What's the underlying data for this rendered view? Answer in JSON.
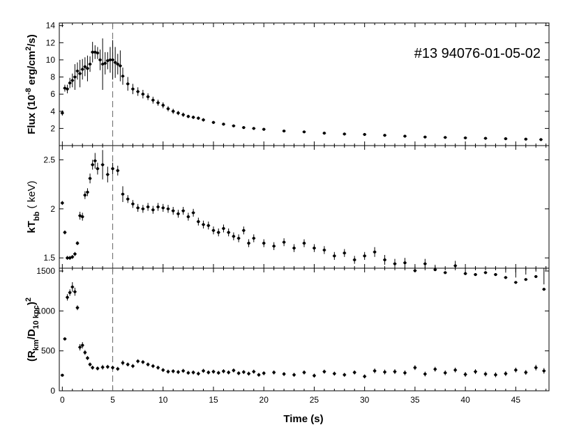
{
  "chart_data": {
    "type": "scatter",
    "title": "",
    "annotation": "#13 94076-01-05-02",
    "xlabel": "Time (s)",
    "xlim": [
      -0.3,
      48.3
    ],
    "xticks": [
      0,
      5,
      10,
      15,
      20,
      25,
      30,
      35,
      40,
      45
    ],
    "xtick_labels": [
      "0",
      "5",
      "10",
      "15",
      "20",
      "25",
      "30",
      "35",
      "40",
      "45"
    ],
    "vline_x": 5,
    "marker_color": "#000000",
    "panels": [
      {
        "name": "flux",
        "ylabel_parts": [
          "Flux (10",
          "-8",
          " erg/cm",
          "2",
          "/s)"
        ],
        "ylim": [
          0,
          14.3
        ],
        "yticks": [
          2,
          4,
          6,
          8,
          10,
          12,
          14
        ],
        "ytick_labels": [
          "2",
          "4",
          "6",
          "8",
          "10",
          "12",
          "14"
        ],
        "x": [
          0.0,
          0.25,
          0.5,
          0.75,
          1.0,
          1.25,
          1.5,
          1.75,
          2.0,
          2.25,
          2.5,
          2.75,
          3.0,
          3.25,
          3.5,
          3.75,
          4.0,
          4.25,
          4.5,
          4.75,
          5.0,
          5.25,
          5.5,
          5.75,
          6.0,
          6.5,
          7.0,
          7.5,
          8.0,
          8.5,
          9.0,
          9.5,
          10.0,
          10.5,
          11.0,
          11.5,
          12.0,
          12.5,
          13.0,
          13.5,
          14.0,
          15.0,
          16.0,
          17.0,
          18.0,
          19.0,
          20.0,
          22.0,
          24.0,
          26.0,
          28.0,
          30.0,
          32.0,
          34.0,
          36.0,
          38.0,
          40.0,
          42.0,
          44.0,
          46.0,
          47.5
        ],
        "y": [
          3.8,
          6.7,
          6.6,
          7.3,
          7.6,
          8.0,
          8.7,
          8.4,
          8.9,
          9.2,
          9.0,
          9.5,
          10.9,
          10.9,
          10.8,
          10.0,
          9.5,
          9.6,
          9.9,
          10.0,
          10.0,
          9.7,
          9.5,
          9.3,
          8.1,
          7.2,
          6.6,
          6.3,
          6.0,
          5.7,
          5.3,
          5.0,
          4.7,
          4.3,
          4.0,
          3.8,
          3.6,
          3.4,
          3.3,
          3.2,
          3.0,
          2.7,
          2.5,
          2.3,
          2.1,
          2.0,
          1.9,
          1.7,
          1.6,
          1.45,
          1.35,
          1.3,
          1.2,
          1.1,
          1.0,
          0.95,
          0.9,
          0.85,
          0.8,
          0.75,
          0.7
        ],
        "yerr": [
          0.3,
          0.4,
          0.5,
          0.6,
          0.8,
          1.5,
          1.0,
          1.6,
          1.2,
          1.1,
          1.5,
          0.9,
          1.2,
          0.8,
          0.7,
          1.2,
          3.0,
          1.3,
          1.0,
          1.5,
          2.3,
          1.8,
          1.2,
          1.8,
          1.0,
          0.8,
          0.6,
          0.5,
          0.5,
          0.4,
          0.4,
          0.35,
          0.35,
          0.3,
          0.3,
          0.25,
          0.25,
          0.2,
          0.2,
          0.2,
          0.2,
          0.15,
          0.15,
          0.15,
          0.12,
          0.12,
          0.12,
          0.1,
          0.1,
          0.1,
          0.1,
          0.1,
          0.08,
          0.08,
          0.08,
          0.08,
          0.08,
          0.08,
          0.08,
          0.08,
          0.08
        ]
      },
      {
        "name": "kT",
        "ylabel_parts": [
          "kT",
          "bb",
          " ( keV)"
        ],
        "ylim": [
          1.395,
          2.645
        ],
        "yticks": [
          1.5,
          2.0,
          2.5
        ],
        "ytick_labels": [
          "1.5",
          "2",
          "2.5"
        ],
        "x": [
          0.0,
          0.25,
          0.5,
          0.75,
          1.0,
          1.25,
          1.5,
          1.75,
          2.0,
          2.25,
          2.5,
          2.75,
          3.0,
          3.25,
          3.5,
          4.0,
          4.5,
          5.0,
          5.5,
          6.0,
          6.5,
          7.0,
          7.5,
          8.0,
          8.5,
          9.0,
          9.5,
          10.0,
          10.5,
          11.0,
          11.5,
          12.0,
          12.5,
          13.0,
          13.5,
          14.0,
          14.5,
          15.0,
          15.5,
          16.0,
          16.5,
          17.0,
          17.5,
          18.0,
          18.5,
          19.0,
          20.0,
          21.0,
          22.0,
          23.0,
          24.0,
          25.0,
          26.0,
          27.0,
          28.0,
          29.0,
          30.0,
          31.0,
          32.0,
          33.0,
          34.0,
          35.0,
          36.0,
          37.0,
          38.0,
          39.0,
          40.0,
          41.0,
          42.0,
          43.0,
          44.0,
          45.0,
          46.0,
          47.0,
          47.8
        ],
        "y": [
          2.06,
          1.76,
          1.5,
          1.5,
          1.51,
          1.54,
          1.65,
          1.93,
          1.92,
          2.14,
          2.17,
          2.31,
          2.45,
          2.49,
          2.41,
          2.45,
          2.35,
          2.41,
          2.39,
          2.15,
          2.1,
          2.05,
          2.01,
          2.0,
          2.02,
          1.99,
          2.02,
          2.01,
          2.0,
          1.98,
          1.95,
          1.98,
          1.92,
          1.96,
          1.87,
          1.84,
          1.83,
          1.78,
          1.76,
          1.8,
          1.76,
          1.72,
          1.7,
          1.78,
          1.65,
          1.7,
          1.65,
          1.62,
          1.66,
          1.6,
          1.65,
          1.6,
          1.58,
          1.52,
          1.55,
          1.48,
          1.52,
          1.56,
          1.48,
          1.44,
          1.45,
          1.37,
          1.44,
          1.38,
          1.35,
          1.42,
          1.34,
          1.33,
          1.35,
          1.33,
          1.3,
          1.25,
          1.28,
          1.31,
          1.18
        ],
        "yerr": [
          0.02,
          0.02,
          0.02,
          0.02,
          0.02,
          0.02,
          0.02,
          0.04,
          0.04,
          0.04,
          0.04,
          0.05,
          0.05,
          0.08,
          0.06,
          0.15,
          0.08,
          0.06,
          0.05,
          0.08,
          0.04,
          0.04,
          0.04,
          0.04,
          0.04,
          0.04,
          0.04,
          0.04,
          0.04,
          0.04,
          0.04,
          0.04,
          0.04,
          0.04,
          0.04,
          0.04,
          0.04,
          0.04,
          0.04,
          0.04,
          0.04,
          0.04,
          0.04,
          0.04,
          0.04,
          0.04,
          0.04,
          0.04,
          0.04,
          0.04,
          0.04,
          0.04,
          0.04,
          0.04,
          0.04,
          0.04,
          0.04,
          0.05,
          0.05,
          0.05,
          0.05,
          0.05,
          0.05,
          0.05,
          0.05,
          0.05,
          0.05,
          0.05,
          0.05,
          0.05,
          0.05,
          0.05,
          0.05,
          0.05,
          0.05
        ]
      },
      {
        "name": "radius",
        "ylabel_parts": [
          "(R",
          "km",
          "/D",
          "10 kpc",
          ")",
          "2"
        ],
        "ylim": [
          0,
          1535
        ],
        "yticks": [
          0,
          500,
          1000,
          1500
        ],
        "ytick_labels": [
          "0",
          "500",
          "1000",
          "1500"
        ],
        "x": [
          0.0,
          0.25,
          0.5,
          0.75,
          1.0,
          1.25,
          1.5,
          1.75,
          2.0,
          2.25,
          2.5,
          2.75,
          3.0,
          3.5,
          4.0,
          4.5,
          5.0,
          5.5,
          6.0,
          6.5,
          7.0,
          7.5,
          8.0,
          8.5,
          9.0,
          9.5,
          10.0,
          10.5,
          11.0,
          11.5,
          12.0,
          12.5,
          13.0,
          13.5,
          14.0,
          14.5,
          15.0,
          15.5,
          16.0,
          16.5,
          17.0,
          17.5,
          18.0,
          18.5,
          19.0,
          19.5,
          20.0,
          21.0,
          22.0,
          23.0,
          24.0,
          25.0,
          26.0,
          27.0,
          28.0,
          29.0,
          30.0,
          31.0,
          32.0,
          33.0,
          34.0,
          35.0,
          36.0,
          37.0,
          38.0,
          39.0,
          40.0,
          41.0,
          42.0,
          43.0,
          44.0,
          45.0,
          46.0,
          47.0,
          47.8
        ],
        "y": [
          195,
          650,
          1170,
          1230,
          1300,
          1240,
          1040,
          545,
          570,
          480,
          410,
          330,
          290,
          280,
          295,
          300,
          290,
          275,
          350,
          330,
          310,
          370,
          360,
          330,
          310,
          290,
          260,
          240,
          245,
          235,
          250,
          225,
          230,
          215,
          250,
          230,
          240,
          225,
          245,
          230,
          255,
          220,
          235,
          215,
          240,
          200,
          220,
          230,
          210,
          200,
          230,
          190,
          240,
          215,
          200,
          230,
          180,
          250,
          235,
          240,
          225,
          290,
          210,
          270,
          225,
          260,
          205,
          240,
          210,
          200,
          215,
          260,
          230,
          290,
          250
        ],
        "yerr": [
          10,
          20,
          40,
          40,
          60,
          50,
          30,
          40,
          40,
          30,
          25,
          25,
          25,
          25,
          30,
          25,
          25,
          25,
          30,
          25,
          25,
          25,
          25,
          25,
          25,
          25,
          25,
          25,
          25,
          25,
          25,
          25,
          25,
          25,
          25,
          25,
          25,
          25,
          25,
          25,
          25,
          25,
          25,
          25,
          25,
          25,
          25,
          25,
          25,
          25,
          25,
          25,
          25,
          25,
          25,
          25,
          25,
          30,
          30,
          30,
          30,
          30,
          30,
          30,
          30,
          30,
          30,
          30,
          30,
          30,
          30,
          30,
          30,
          35,
          35
        ]
      }
    ]
  }
}
